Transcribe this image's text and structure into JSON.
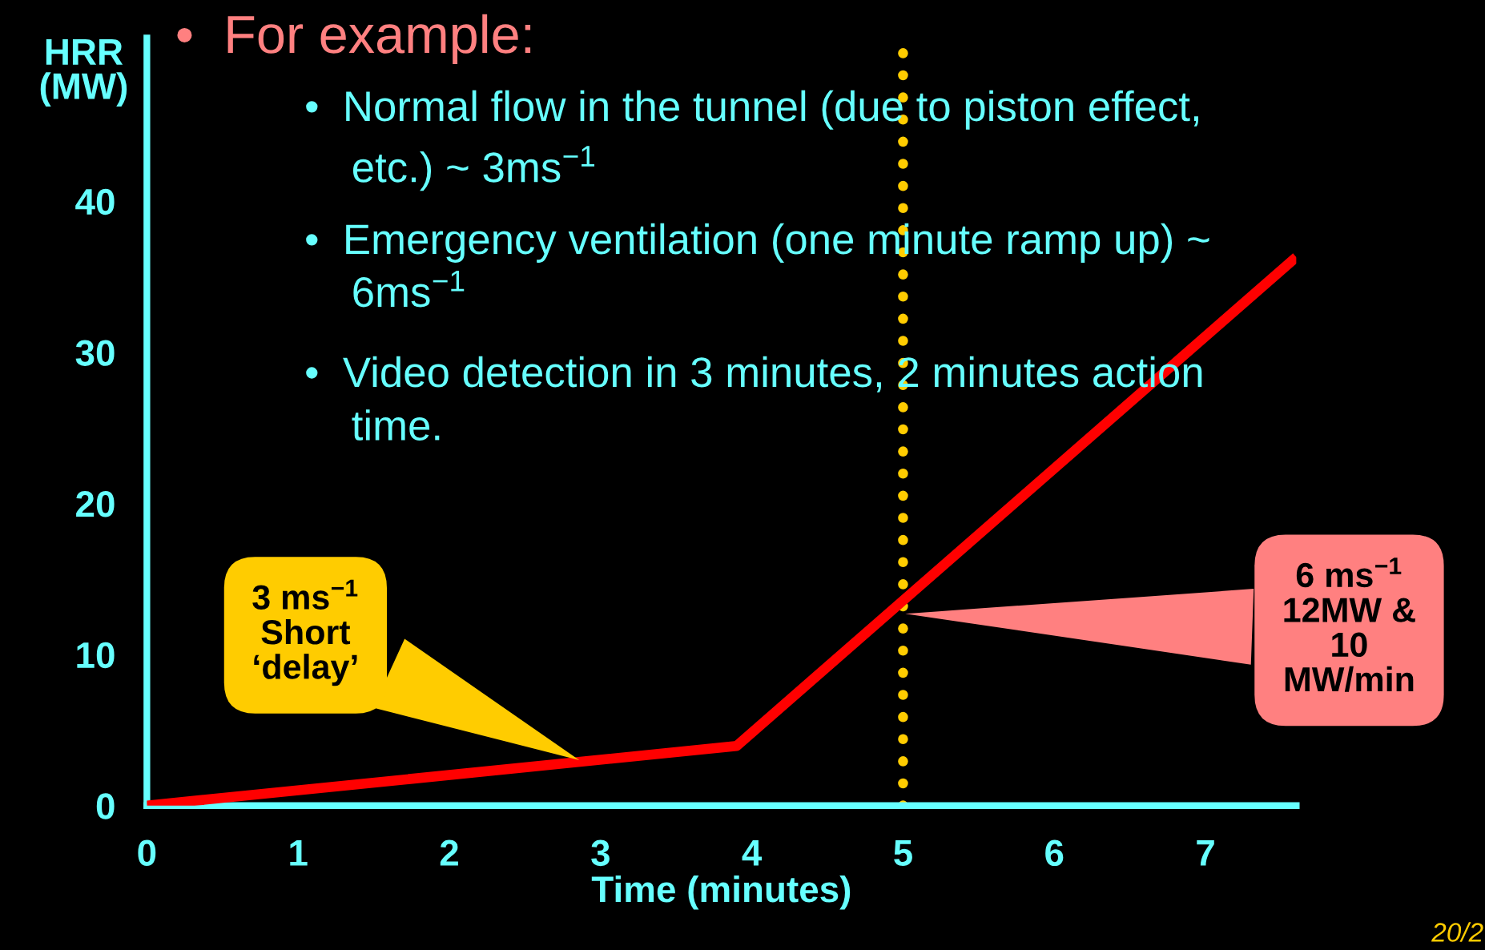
{
  "chart_data": {
    "type": "line",
    "xlabel": "Time (minutes)",
    "ylabel": "HRR\n(MW)",
    "series": [
      {
        "color": "#ff0000",
        "x": [
          0,
          3.9,
          7.6
        ],
        "values": [
          0,
          3.95,
          36.3
        ]
      }
    ],
    "xlim": [
      0,
      7.6
    ],
    "ylim": [
      0,
      50.8
    ],
    "xticks": [
      0,
      1,
      2,
      3,
      4,
      5,
      6,
      7
    ],
    "yticks": [
      0,
      10,
      20,
      30,
      40
    ],
    "grid": false,
    "marker": "none",
    "line_style": "solid",
    "ref_lines": [
      {
        "axis": "x",
        "value": 5,
        "color": "#ffcc00",
        "line_style": "dotted"
      }
    ],
    "annotations": [
      "•  For example:",
      "•  Normal flow in the tunnel (due to piston effect,\n    etc.) ~ 3ms$^{−1}$",
      "•  Emergency ventilation (one minute ramp up) ~\n    6ms$^{−1}$",
      "•  Video detection in 3 minutes, 2 minutes action\n    time.",
      "3 ms$^{−1}$\nShort\n‘delay’",
      {
        "text": "6 ms$^{−1}$\n12MW &\n10\nMW/min",
        "x": 5,
        "y": 12.7
      },
      "20/2"
    ]
  }
}
